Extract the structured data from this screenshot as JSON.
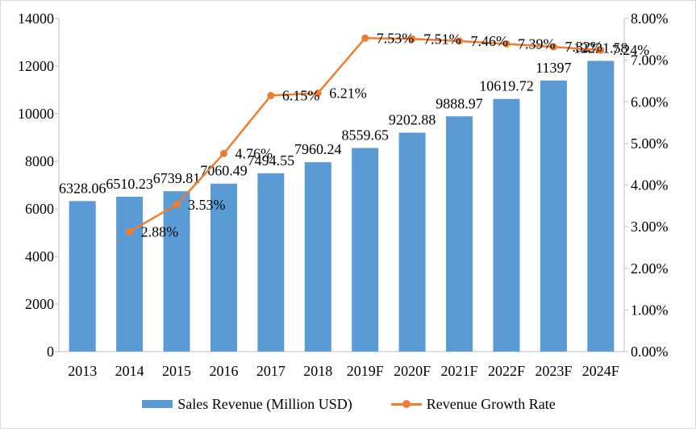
{
  "colors": {
    "bar": "#5b9bd5",
    "line": "#ed7d31",
    "axis": "#bfbfbf"
  },
  "legend": {
    "bar_label": "Sales Revenue (Million USD)",
    "line_label": "Revenue Growth Rate"
  },
  "chart_data": {
    "type": "bar",
    "categories": [
      "2013",
      "2014",
      "2015",
      "2016",
      "2017",
      "2018",
      "2019F",
      "2020F",
      "2021F",
      "2022F",
      "2023F",
      "2024F"
    ],
    "series": [
      {
        "name": "Sales Revenue (Million USD)",
        "type": "bar",
        "axis": "left",
        "values": [
          6328.06,
          6510.23,
          6739.81,
          7060.49,
          7494.55,
          7960.24,
          8559.65,
          9202.88,
          9888.97,
          10619.72,
          11397,
          12221.58
        ],
        "labels": [
          "6328.06",
          "6510.23",
          "6739.81",
          "7060.49",
          "7494.55",
          "7960.24",
          "8559.65",
          "9202.88",
          "9888.97",
          "10619.72",
          "11397",
          "12221.58"
        ]
      },
      {
        "name": "Revenue Growth Rate",
        "type": "line",
        "axis": "right",
        "values": [
          null,
          2.88,
          3.53,
          4.76,
          6.15,
          6.21,
          7.53,
          7.51,
          7.46,
          7.39,
          7.32,
          7.24
        ],
        "labels": [
          null,
          "2.88%",
          "3.53%",
          "4.76%",
          "6.15%",
          "6.21%",
          "7.53%",
          "7.51%",
          "7.46%",
          "7.39%",
          "7.32%",
          "7.24%"
        ]
      }
    ],
    "y_left": {
      "min": 0,
      "max": 14000,
      "ticks": [
        "0",
        "2000",
        "4000",
        "6000",
        "8000",
        "10000",
        "12000",
        "14000"
      ]
    },
    "y_right": {
      "min": 0,
      "max": 8,
      "ticks": [
        "0.00%",
        "1.00%",
        "2.00%",
        "3.00%",
        "4.00%",
        "5.00%",
        "6.00%",
        "7.00%",
        "8.00%"
      ]
    },
    "grid": false,
    "legend_position": "bottom"
  }
}
